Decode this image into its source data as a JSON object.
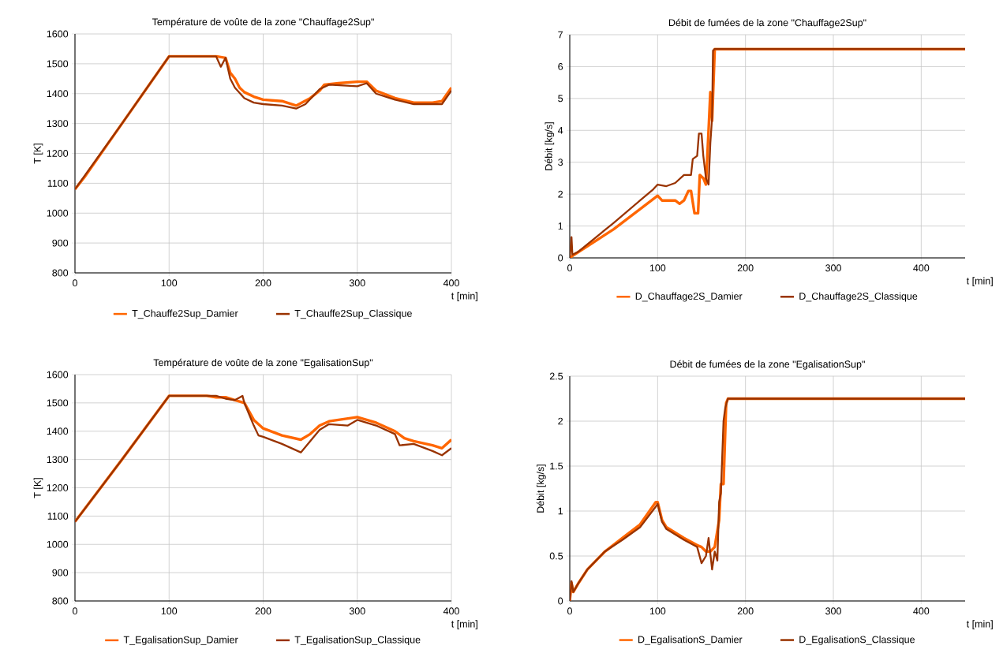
{
  "chart_data": [
    {
      "type": "line",
      "title": "Température de voûte de la zone \"Chauffage2Sup\"",
      "xlabel": "t [min]",
      "ylabel": "T [K]",
      "xlim": [
        0,
        400
      ],
      "ylim": [
        800,
        1600
      ],
      "xticks": [
        0,
        100,
        200,
        300,
        400
      ],
      "yticks": [
        800,
        900,
        1000,
        1100,
        1200,
        1300,
        1400,
        1500,
        1600
      ],
      "grid": true,
      "legend": "bottom",
      "series": [
        {
          "name": "T_Chauffe2Sup_Damier",
          "color": "#ff6600",
          "x": [
            0,
            10,
            50,
            100,
            150,
            160,
            165,
            170,
            175,
            180,
            190,
            200,
            220,
            235,
            250,
            260,
            265,
            280,
            300,
            310,
            320,
            340,
            360,
            380,
            390,
            400
          ],
          "values": [
            1080,
            1120,
            1300,
            1525,
            1525,
            1520,
            1470,
            1450,
            1420,
            1405,
            1390,
            1380,
            1375,
            1360,
            1385,
            1410,
            1430,
            1435,
            1440,
            1440,
            1410,
            1385,
            1370,
            1370,
            1375,
            1420
          ]
        },
        {
          "name": "T_Chauffe2Sup_Classique",
          "color": "#993300",
          "x": [
            0,
            50,
            100,
            150,
            155,
            160,
            165,
            170,
            180,
            190,
            200,
            220,
            235,
            245,
            260,
            270,
            300,
            310,
            320,
            340,
            360,
            390,
            400
          ],
          "values": [
            1080,
            1300,
            1525,
            1525,
            1490,
            1520,
            1450,
            1420,
            1385,
            1370,
            1365,
            1360,
            1350,
            1365,
            1415,
            1430,
            1425,
            1435,
            1400,
            1380,
            1365,
            1365,
            1410
          ]
        }
      ]
    },
    {
      "type": "line",
      "title": "Débit de fumées de la zone \"Chauffage2Sup\"",
      "xlabel": "t [min]",
      "ylabel": "Débit [kg/s]",
      "xlim": [
        0,
        450
      ],
      "ylim": [
        0,
        7
      ],
      "xticks": [
        0,
        100,
        200,
        300,
        400
      ],
      "yticks": [
        0,
        1,
        2,
        3,
        4,
        5,
        6,
        7
      ],
      "grid": true,
      "legend": "bottom",
      "series": [
        {
          "name": "D_Chauffage2S_Damier",
          "color": "#ff6600",
          "x": [
            0,
            5,
            50,
            100,
            105,
            120,
            125,
            130,
            135,
            138,
            142,
            146,
            148,
            152,
            155,
            158,
            160,
            162,
            165,
            450
          ],
          "values": [
            0,
            0.1,
            0.9,
            1.95,
            1.8,
            1.8,
            1.7,
            1.8,
            2.1,
            2.1,
            1.4,
            1.4,
            2.6,
            2.5,
            2.3,
            4,
            5.2,
            4.3,
            6.55,
            6.55
          ]
        },
        {
          "name": "D_Chauffage2S_Classique",
          "color": "#993300",
          "x": [
            0,
            2,
            3,
            10,
            50,
            80,
            95,
            100,
            110,
            120,
            130,
            138,
            140,
            145,
            147,
            150,
            152,
            155,
            158,
            160,
            162,
            163,
            165,
            450
          ],
          "values": [
            0,
            0.65,
            0.1,
            0.2,
            1.1,
            1.8,
            2.15,
            2.3,
            2.25,
            2.35,
            2.6,
            2.6,
            3.1,
            3.2,
            3.9,
            3.9,
            3.2,
            2.5,
            2.3,
            3.6,
            4.4,
            6.5,
            6.55,
            6.55
          ]
        }
      ]
    },
    {
      "type": "line",
      "title": "Température de voûte de la zone \"EgalisationSup\"",
      "xlabel": "t [min]",
      "ylabel": "T [K]",
      "xlim": [
        0,
        400
      ],
      "ylim": [
        800,
        1600
      ],
      "xticks": [
        0,
        100,
        200,
        300,
        400
      ],
      "yticks": [
        800,
        900,
        1000,
        1100,
        1200,
        1300,
        1400,
        1500,
        1600
      ],
      "grid": true,
      "legend": "bottom",
      "series": [
        {
          "name": "T_EgalisationSup_Damier",
          "color": "#ff6600",
          "x": [
            0,
            50,
            100,
            140,
            150,
            160,
            170,
            180,
            185,
            190,
            195,
            200,
            220,
            240,
            250,
            260,
            270,
            300,
            320,
            340,
            350,
            360,
            380,
            390,
            400
          ],
          "values": [
            1080,
            1300,
            1525,
            1525,
            1520,
            1520,
            1510,
            1500,
            1470,
            1440,
            1425,
            1410,
            1385,
            1370,
            1390,
            1420,
            1435,
            1450,
            1430,
            1400,
            1375,
            1365,
            1350,
            1340,
            1370
          ]
        },
        {
          "name": "T_EgalisationSup_Classique",
          "color": "#993300",
          "x": [
            0,
            50,
            100,
            150,
            160,
            170,
            178,
            180,
            185,
            190,
            195,
            200,
            220,
            240,
            260,
            270,
            290,
            300,
            320,
            340,
            345,
            360,
            380,
            390,
            400
          ],
          "values": [
            1080,
            1300,
            1525,
            1525,
            1515,
            1510,
            1525,
            1500,
            1460,
            1420,
            1385,
            1380,
            1355,
            1325,
            1405,
            1425,
            1420,
            1440,
            1420,
            1390,
            1350,
            1355,
            1330,
            1315,
            1340
          ]
        }
      ]
    },
    {
      "type": "line",
      "title": "Débit de fumées de la zone \"EgalisationSup\"",
      "xlabel": "t [min]",
      "ylabel": "Débit [kg/s]",
      "xlim": [
        0,
        450
      ],
      "ylim": [
        0,
        2.5
      ],
      "xticks": [
        0,
        100,
        200,
        300,
        400
      ],
      "yticks": [
        0,
        0.5,
        1,
        1.5,
        2,
        2.5
      ],
      "grid": true,
      "legend": "bottom",
      "series": [
        {
          "name": "D_EgalisationS_Damier",
          "color": "#ff6600",
          "x": [
            0,
            2,
            4,
            10,
            20,
            40,
            60,
            80,
            98,
            100,
            105,
            110,
            130,
            145,
            150,
            155,
            160,
            165,
            170,
            172,
            175,
            178,
            180,
            450
          ],
          "values": [
            0,
            0.2,
            0.1,
            0.2,
            0.35,
            0.55,
            0.7,
            0.85,
            1.1,
            1.1,
            0.9,
            0.82,
            0.7,
            0.62,
            0.6,
            0.55,
            0.55,
            0.6,
            0.9,
            1.3,
            1.3,
            2.2,
            2.25,
            2.25
          ]
        },
        {
          "name": "D_EgalisationS_Classique",
          "color": "#993300",
          "x": [
            0,
            2,
            4,
            10,
            20,
            40,
            60,
            80,
            98,
            100,
            105,
            110,
            130,
            145,
            150,
            155,
            158,
            162,
            165,
            168,
            170,
            172,
            175,
            177,
            180,
            450
          ],
          "values": [
            0,
            0.22,
            0.1,
            0.2,
            0.35,
            0.55,
            0.68,
            0.82,
            1.05,
            1.08,
            0.88,
            0.8,
            0.68,
            0.6,
            0.42,
            0.5,
            0.7,
            0.35,
            0.55,
            0.45,
            1.1,
            1.2,
            2.0,
            2.15,
            2.25,
            2.25
          ]
        }
      ]
    }
  ]
}
